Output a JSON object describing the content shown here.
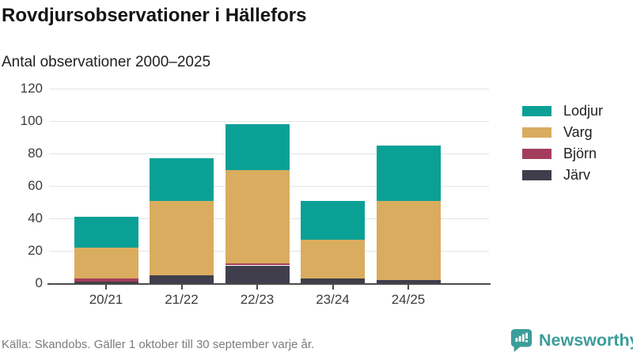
{
  "header": {
    "title": "Rovdjursobservationer i Hällefors",
    "subtitle": "Antal observationer 2000–2025"
  },
  "chart_data": {
    "type": "bar",
    "stacked": true,
    "title": "Rovdjursobservationer i Hällefors",
    "subtitle": "Antal observationer 2000–2025",
    "categories": [
      "20/21",
      "21/22",
      "22/23",
      "23/24",
      "24/25"
    ],
    "series": [
      {
        "name": "Järv",
        "color": "#403e4c",
        "values": [
          1,
          5,
          11,
          3,
          2
        ]
      },
      {
        "name": "Björn",
        "color": "#a43d5d",
        "values": [
          2,
          0,
          1,
          0,
          0
        ]
      },
      {
        "name": "Varg",
        "color": "#d9ac5f",
        "values": [
          19,
          46,
          58,
          24,
          49
        ]
      },
      {
        "name": "Lodjur",
        "color": "#0aa096",
        "values": [
          19,
          26,
          28,
          24,
          34
        ]
      }
    ],
    "totals": [
      41,
      77,
      98,
      51,
      85
    ],
    "xlabel": "",
    "ylabel": "",
    "ylim": [
      0,
      120
    ],
    "yticks": [
      0,
      20,
      40,
      60,
      80,
      100,
      120
    ],
    "grid": true,
    "legend_position": "right",
    "legend_order": [
      "Lodjur",
      "Varg",
      "Björn",
      "Järv"
    ]
  },
  "footer": {
    "source": "Källa: Skandobs. Gäller 1 oktober till 30 september varje år.",
    "brand": "Newsworthy"
  },
  "colors": {
    "lodjur_teal": "#0aa096",
    "varg_gold": "#d9ac5f",
    "bjorn_maroon": "#a43d5d",
    "jarv_dark": "#403e4c",
    "gridline": "#e4e4e4",
    "axis": "#4b4b4b",
    "brand_teal": "#3c9d9a"
  }
}
